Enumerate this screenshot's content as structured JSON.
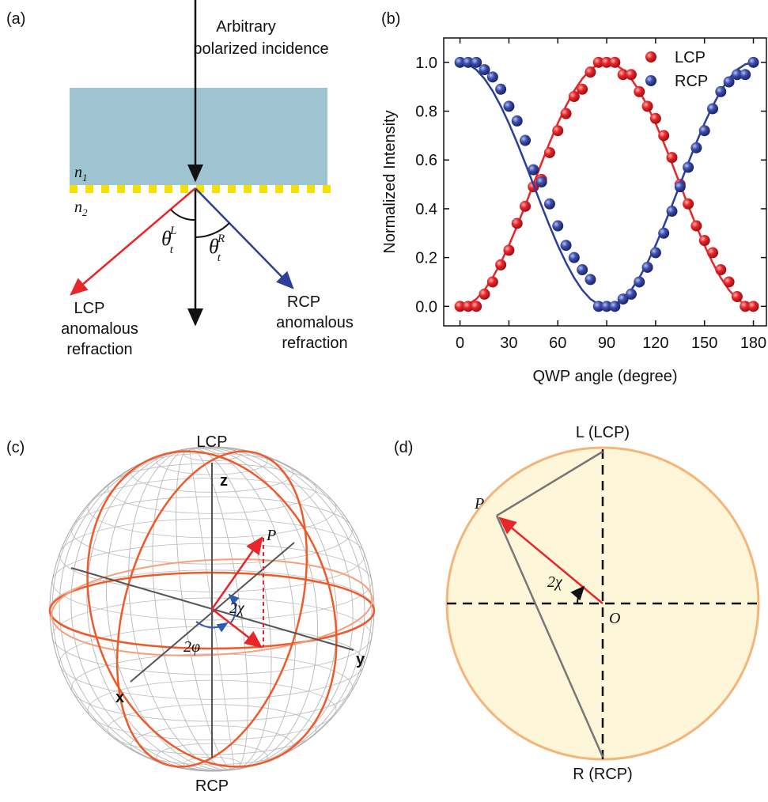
{
  "chart_data": {
    "type": "scatter",
    "panel_label": "(b)",
    "xlabel": "QWP angle (degree)",
    "ylabel": "Normalized Intensity",
    "x": [
      0,
      5,
      10,
      15,
      20,
      25,
      30,
      35,
      40,
      45,
      50,
      55,
      60,
      65,
      70,
      75,
      80,
      85,
      90,
      95,
      100,
      105,
      110,
      115,
      120,
      125,
      130,
      135,
      140,
      145,
      150,
      155,
      160,
      165,
      170,
      175,
      180
    ],
    "series": [
      {
        "name": "LCP",
        "color": "#e8262a",
        "values": [
          0,
          0,
          0,
          0.05,
          0.1,
          0.17,
          0.23,
          0.34,
          0.41,
          0.49,
          0.52,
          0.63,
          0.72,
          0.79,
          0.86,
          0.89,
          0.96,
          1,
          1,
          1,
          0.95,
          0.95,
          0.88,
          0.82,
          0.77,
          0.7,
          0.61,
          0.5,
          0.42,
          0.33,
          0.27,
          0.22,
          0.15,
          0.1,
          0.04,
          0,
          0
        ],
        "fit": [
          0,
          0.008,
          0.03,
          0.067,
          0.117,
          0.179,
          0.25,
          0.329,
          0.413,
          0.5,
          0.587,
          0.671,
          0.75,
          0.821,
          0.883,
          0.933,
          0.97,
          0.992,
          1,
          0.992,
          0.97,
          0.933,
          0.883,
          0.821,
          0.75,
          0.671,
          0.587,
          0.5,
          0.413,
          0.329,
          0.25,
          0.179,
          0.117,
          0.067,
          0.03,
          0.008,
          0
        ]
      },
      {
        "name": "RCP",
        "color": "#2e3f99",
        "values": [
          1,
          1,
          1,
          0.97,
          0.94,
          0.89,
          0.82,
          0.76,
          0.68,
          0.56,
          0.51,
          0.42,
          0.33,
          0.25,
          0.2,
          0.15,
          0.11,
          0,
          0,
          0,
          0.03,
          0.05,
          0.1,
          0.16,
          0.22,
          0.3,
          0.39,
          0.49,
          0.57,
          0.65,
          0.72,
          0.81,
          0.88,
          0.92,
          0.95,
          0.95,
          1
        ],
        "fit": [
          1,
          0.992,
          0.97,
          0.933,
          0.883,
          0.821,
          0.75,
          0.671,
          0.587,
          0.5,
          0.413,
          0.329,
          0.25,
          0.179,
          0.117,
          0.067,
          0.03,
          0.008,
          0,
          0.008,
          0.03,
          0.067,
          0.117,
          0.179,
          0.25,
          0.329,
          0.413,
          0.5,
          0.587,
          0.671,
          0.75,
          0.821,
          0.883,
          0.933,
          0.97,
          0.992,
          1
        ]
      }
    ],
    "xlim": [
      -10,
      188
    ],
    "ylim": [
      -0.08,
      1.1
    ],
    "xticks": [
      0,
      30,
      60,
      90,
      120,
      150,
      180
    ],
    "yticks": [
      {
        "value": 0,
        "label": "0.0"
      },
      {
        "value": 0.2,
        "label": "0.2"
      },
      {
        "value": 0.4,
        "label": "0.4"
      },
      {
        "value": 0.6,
        "label": "0.6"
      },
      {
        "value": 0.8,
        "label": "0.8"
      },
      {
        "value": 1,
        "label": "1.0"
      }
    ],
    "legend": "upper-right",
    "fit_lines": true
  },
  "panel_a": {
    "label": "(a)",
    "incidence": [
      "Arbitrary",
      "polarized incidence"
    ],
    "n1": {
      "symbol": "n",
      "sub": "1"
    },
    "n2": {
      "symbol": "n",
      "sub": "2"
    },
    "theta_l": {
      "symbol": "θ",
      "sub": "t",
      "sup": "L"
    },
    "theta_r": {
      "symbol": "θ",
      "sub": "t",
      "sup": "R"
    },
    "lcp": [
      "LCP",
      "anomalous",
      "refraction"
    ],
    "rcp": [
      "RCP",
      "anomalous",
      "refraction"
    ]
  },
  "panel_c": {
    "label": "(c)",
    "top": "LCP",
    "bottom": "RCP",
    "z": "z",
    "x": "x",
    "y": "y",
    "p": "P",
    "chi": "2χ",
    "phi": "2φ"
  },
  "panel_d": {
    "label": "(d)",
    "top": "L (LCP)",
    "bottom": "R (RCP)",
    "p": "P",
    "chi": "2χ",
    "o": "O"
  }
}
